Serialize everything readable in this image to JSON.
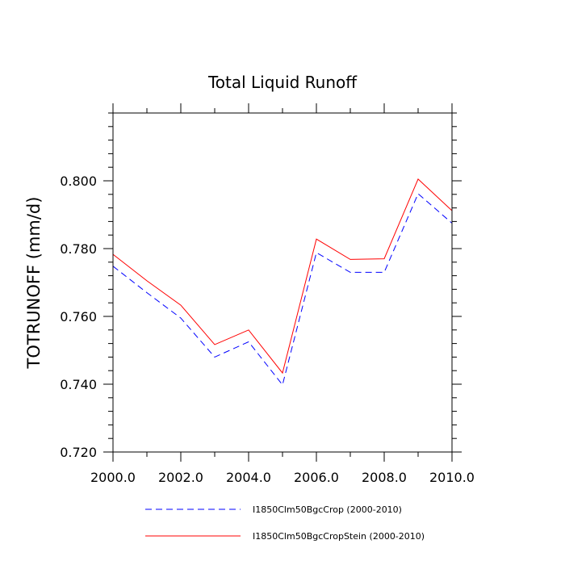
{
  "chart_data": {
    "type": "line",
    "title": "Total Liquid Runoff",
    "xlabel": "",
    "ylabel": "TOTRUNOFF  (mm/d)",
    "xlim": [
      2000,
      2010
    ],
    "ylim": [
      0.72,
      0.82
    ],
    "x_ticks": [
      2000,
      2002,
      2004,
      2006,
      2008,
      2010
    ],
    "x_tick_labels": [
      "2000.0",
      "2002.0",
      "2004.0",
      "2006.0",
      "2008.0",
      "2010.0"
    ],
    "x_minor_ticks": [
      2001,
      2003,
      2005,
      2007,
      2009
    ],
    "y_ticks": [
      0.72,
      0.74,
      0.76,
      0.78,
      0.8
    ],
    "y_tick_labels": [
      "0.720",
      "0.740",
      "0.760",
      "0.780",
      "0.800"
    ],
    "y_minor_step": 0.004,
    "grid": false,
    "legend_position": "bottom",
    "x": [
      2000,
      2001,
      2002,
      2003,
      2004,
      2005,
      2006,
      2007,
      2008,
      2009,
      2010
    ],
    "series": [
      {
        "name": "I1850Clm50BgcCrop (2000-2010)",
        "color": "#0000ff",
        "dash": "dashed",
        "values": [
          0.7748,
          0.767,
          0.7595,
          0.748,
          0.7525,
          0.7398,
          0.7788,
          0.773,
          0.773,
          0.7962,
          0.7875
        ]
      },
      {
        "name": "I1850Clm50BgcCropStein (2000-2010)",
        "color": "#ff0000",
        "dash": "solid",
        "values": [
          0.7783,
          0.7705,
          0.7633,
          0.7517,
          0.756,
          0.7433,
          0.7828,
          0.7768,
          0.777,
          0.8005,
          0.7912
        ]
      }
    ]
  }
}
